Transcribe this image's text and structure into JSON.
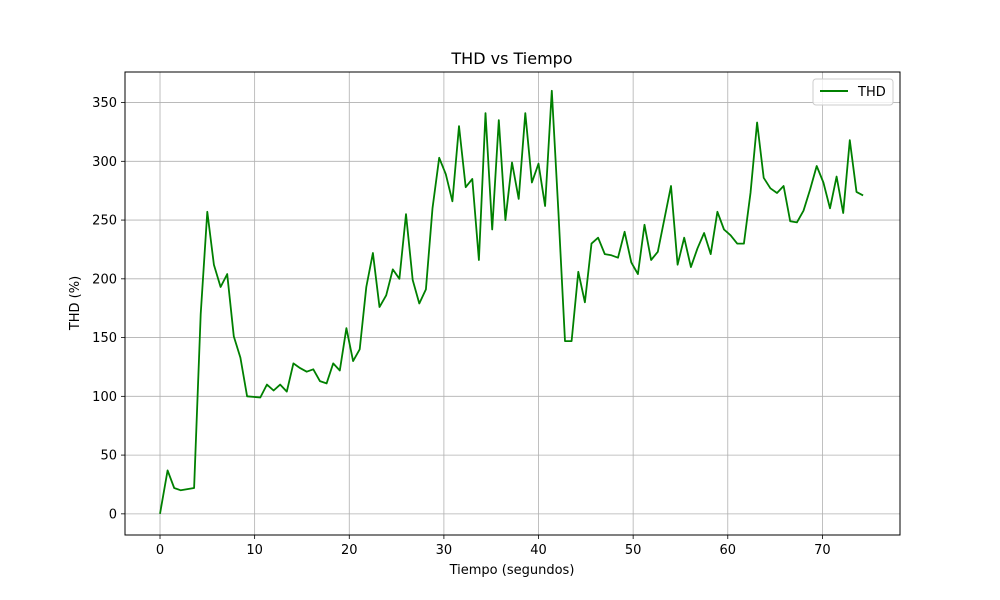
{
  "chart_data": {
    "type": "line",
    "title": "THD vs Tiempo",
    "xlabel": "Tiempo (segundos)",
    "ylabel": "THD (%)",
    "xlim": [
      -3.7,
      78.2
    ],
    "ylim": [
      -18,
      376
    ],
    "xticks": [
      0,
      10,
      20,
      30,
      40,
      50,
      60,
      70
    ],
    "yticks": [
      0,
      50,
      100,
      150,
      200,
      250,
      300,
      350
    ],
    "grid": true,
    "legend_position": "top-right",
    "series": [
      {
        "name": "THD",
        "color": "#008000",
        "x": [
          0,
          0.8,
          1.5,
          2.2,
          3.6,
          4.3,
          5.0,
          5.7,
          6.4,
          7.1,
          7.8,
          8.5,
          9.2,
          10.6,
          11.3,
          12.0,
          12.7,
          13.4,
          14.1,
          14.8,
          15.5,
          16.2,
          16.9,
          17.6,
          18.3,
          19.0,
          19.7,
          20.4,
          21.1,
          21.8,
          22.5,
          23.2,
          23.9,
          24.6,
          25.3,
          26.0,
          26.7,
          27.4,
          28.1,
          28.8,
          29.5,
          30.2,
          30.9,
          31.6,
          32.3,
          33.0,
          33.7,
          34.4,
          35.1,
          35.8,
          36.5,
          37.2,
          37.9,
          38.6,
          39.3,
          40.0,
          40.7,
          41.4,
          42.1,
          42.8,
          43.5,
          44.2,
          44.9,
          45.6,
          46.3,
          47.0,
          47.7,
          48.4,
          49.1,
          49.8,
          50.5,
          51.2,
          51.9,
          52.6,
          53.3,
          54.0,
          54.7,
          55.4,
          56.1,
          56.8,
          57.5,
          58.2,
          58.9,
          59.6,
          60.3,
          61.0,
          61.7,
          62.4,
          63.1,
          63.8,
          64.5,
          65.2,
          65.9,
          66.6,
          67.3,
          68.0,
          68.7,
          69.4,
          70.1,
          70.8,
          71.5,
          72.2,
          72.9,
          73.6,
          74.3
        ],
        "y": [
          0,
          37,
          22,
          20,
          22,
          170,
          257,
          212,
          193,
          204,
          151,
          133,
          100,
          99,
          110,
          105,
          110,
          104,
          128,
          124,
          121,
          123,
          113,
          111,
          128,
          122,
          158,
          130,
          140,
          193,
          222,
          176,
          186,
          208,
          200,
          255,
          199,
          179,
          191,
          260,
          303,
          289,
          266,
          330,
          278,
          285,
          216,
          341,
          242,
          335,
          250,
          299,
          268,
          341,
          282,
          298,
          262,
          360,
          257,
          147,
          147,
          206,
          180,
          230,
          235,
          221,
          220,
          218,
          240,
          214,
          204,
          246,
          216,
          223,
          251,
          279,
          212,
          235,
          210,
          226,
          239,
          221,
          257,
          242,
          237,
          230,
          230,
          273,
          333,
          286,
          277,
          273,
          279,
          249,
          248,
          258,
          276,
          296,
          282,
          260,
          287,
          256,
          318,
          274,
          271
        ]
      }
    ]
  }
}
